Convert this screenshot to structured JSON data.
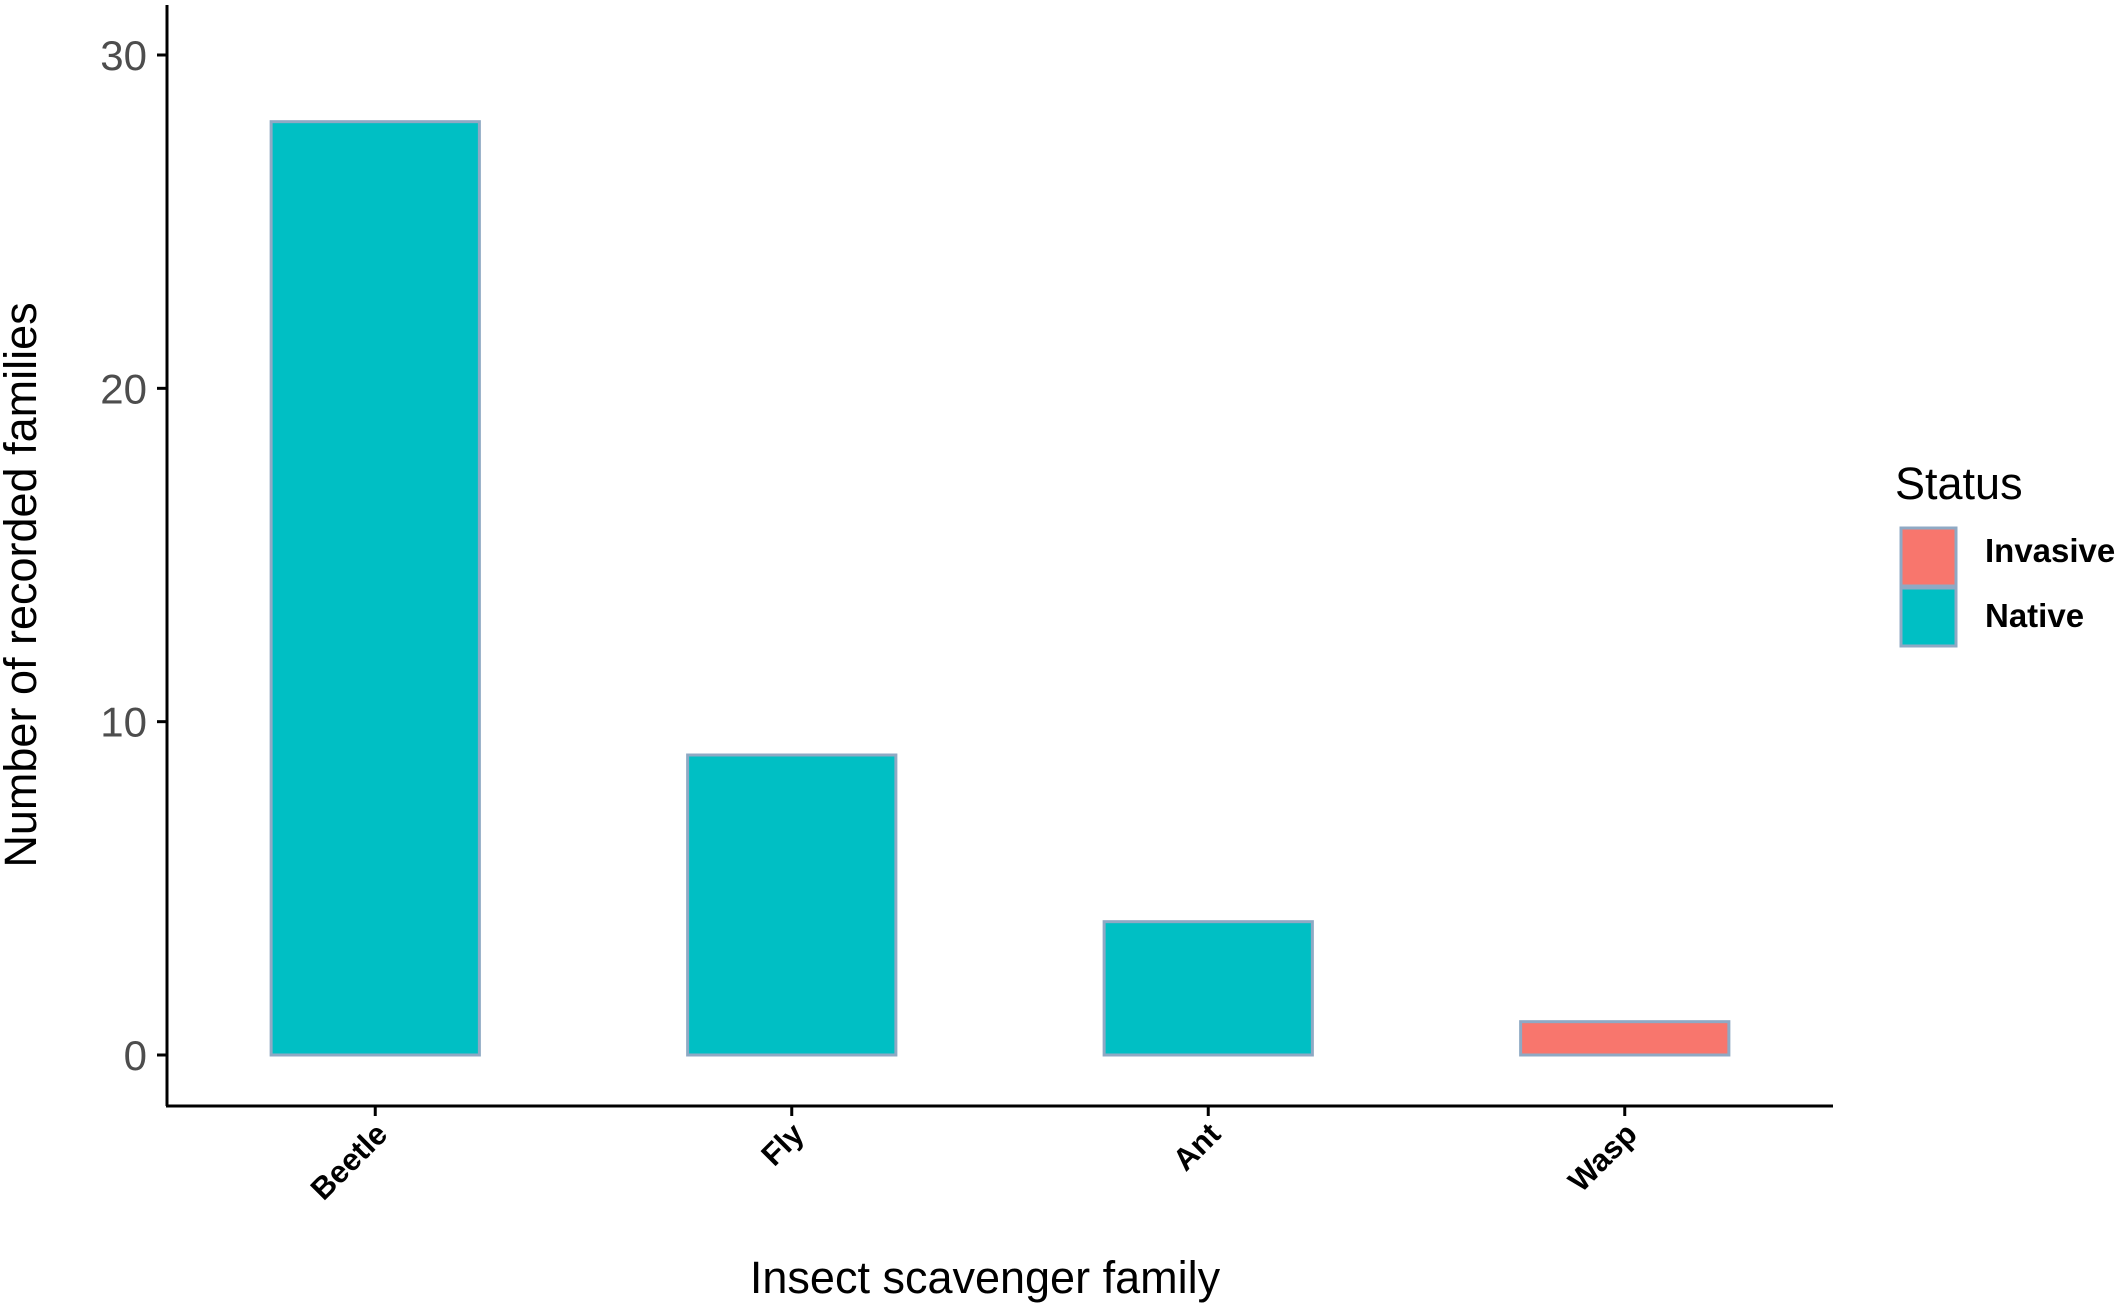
{
  "chart_data": {
    "type": "bar",
    "categories": [
      "Beetle",
      "Fly",
      "Ant",
      "Wasp"
    ],
    "values": [
      28,
      9,
      4,
      1
    ],
    "status": [
      "Native",
      "Native",
      "Native",
      "Invasive"
    ],
    "xlabel": "Insect scavenger family",
    "ylabel": "Number of recorded families",
    "ylim": [
      0,
      31.5
    ],
    "yticks": [
      "0",
      "10",
      "20",
      "30"
    ],
    "grid": false,
    "legend": {
      "title": "Status",
      "placement": "right",
      "entries": [
        {
          "label": "Invasive",
          "color": "#F8766D"
        },
        {
          "label": "Native",
          "color": "#00BFC4"
        }
      ]
    },
    "colors": {
      "Invasive": "#F8766D",
      "Native": "#00BFC4",
      "bar_outline": "#8fa9c4"
    }
  }
}
